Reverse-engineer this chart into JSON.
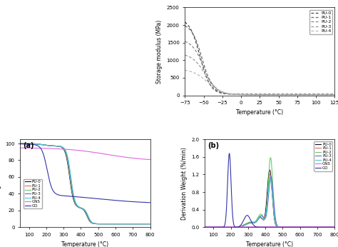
{
  "top_plot": {
    "xlabel": "Temperature (°C)",
    "ylabel": "Storage modulus (MPa)",
    "xlim": [
      -75,
      125
    ],
    "ylim": [
      0,
      2500
    ],
    "yticks": [
      0,
      500,
      1000,
      1500,
      2000,
      2500
    ],
    "xticks": [
      -75,
      -50,
      -25,
      0,
      25,
      50,
      75,
      100,
      125
    ],
    "labels": [
      "PU-0",
      "PU-1",
      "PU-2",
      "PU-3",
      "PU-4"
    ],
    "colors": [
      "#444444",
      "#666666",
      "#888888",
      "#999999",
      "#bbbbbb"
    ],
    "start_vals": [
      2200,
      2050,
      1600,
      1200,
      750
    ],
    "end_vals": [
      30,
      25,
      20,
      15,
      10
    ],
    "transition_centers": [
      -55,
      -52,
      -50,
      -48,
      -45
    ],
    "transition_widths": [
      7,
      7,
      8,
      9,
      10
    ]
  },
  "bottom_left": {
    "label": "(a)",
    "xlabel": "Temperature (°C)",
    "ylabel": "Weight (%)",
    "xlim": [
      50,
      800
    ],
    "ylim": [
      0,
      105
    ],
    "yticks": [
      0,
      20,
      40,
      60,
      80,
      100
    ],
    "xticks": [
      100,
      200,
      300,
      400,
      500,
      600,
      700,
      800
    ]
  },
  "bottom_right": {
    "label": "(b)",
    "xlabel": "Temperature (°C)",
    "ylabel": "Derivation Weight (%/min)",
    "xlim": [
      50,
      800
    ],
    "ylim": [
      0,
      2.0
    ],
    "yticks": [
      0.0,
      0.4,
      0.8,
      1.2,
      1.6,
      2.0
    ],
    "xticks": [
      100,
      200,
      300,
      400,
      500,
      600,
      700,
      800
    ]
  },
  "colors": {
    "PU-0": "#111111",
    "PU-1": "#dd6666",
    "PU-2": "#66cc66",
    "PU-3": "#6666dd",
    "PU-4": "#44cccc",
    "GNS": "#dd66dd",
    "GO": "#3333aa"
  },
  "background_color": "#ffffff"
}
